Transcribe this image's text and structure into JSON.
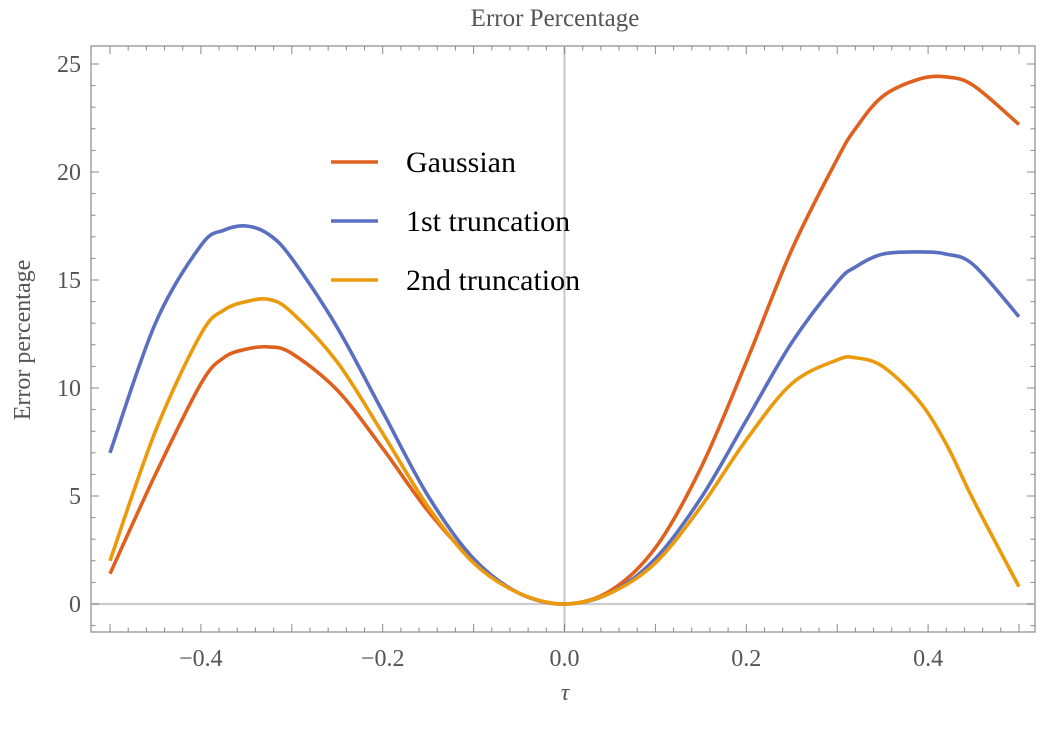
{
  "chart_data": {
    "type": "line",
    "title": "Error Percentage",
    "xlabel": "τ",
    "ylabel": "Error percentage",
    "xlim": [
      -0.5,
      0.5
    ],
    "ylim": [
      -1.3,
      26
    ],
    "x_ticks": [
      "−0.4",
      "−0.2",
      "0.0",
      "0.2",
      "0.4"
    ],
    "x_tick_values": [
      -0.4,
      -0.2,
      0.0,
      0.2,
      0.4
    ],
    "y_ticks": [
      "0",
      "5",
      "10",
      "15",
      "20",
      "25"
    ],
    "y_tick_values": [
      0,
      5,
      10,
      15,
      20,
      25
    ],
    "grid": false,
    "legend_position": "top-center",
    "x": [
      -0.5,
      -0.45,
      -0.4,
      -0.375,
      -0.35,
      -0.325,
      -0.3,
      -0.25,
      -0.2,
      -0.15,
      -0.1,
      -0.05,
      0.0,
      0.05,
      0.1,
      0.15,
      0.2,
      0.25,
      0.3,
      0.32,
      0.35,
      0.39,
      0.42,
      0.45,
      0.5
    ],
    "series": [
      {
        "name": "Gaussian",
        "color": "#e0601e",
        "values": [
          1.4,
          6.0,
          10.2,
          11.4,
          11.8,
          11.9,
          11.6,
          9.9,
          7.2,
          4.3,
          2.0,
          0.5,
          0.0,
          0.6,
          2.6,
          6.3,
          11.2,
          16.4,
          20.6,
          22.0,
          23.5,
          24.3,
          24.4,
          24.0,
          22.2
        ]
      },
      {
        "name": "1st truncation",
        "color": "#5b6fc1",
        "values": [
          7.0,
          13.0,
          16.6,
          17.3,
          17.5,
          17.1,
          16.0,
          12.8,
          8.9,
          5.0,
          2.1,
          0.5,
          0.0,
          0.5,
          2.1,
          4.9,
          8.5,
          12.1,
          14.9,
          15.6,
          16.2,
          16.3,
          16.2,
          15.7,
          13.3
        ]
      },
      {
        "name": "2nd truncation",
        "color": "#eb9a0c",
        "values": [
          2.0,
          8.0,
          12.5,
          13.6,
          14.0,
          14.1,
          13.5,
          11.2,
          7.9,
          4.5,
          1.9,
          0.5,
          0.0,
          0.5,
          1.9,
          4.5,
          7.6,
          10.2,
          11.3,
          11.4,
          11.0,
          9.4,
          7.4,
          4.8,
          0.8
        ]
      }
    ]
  }
}
